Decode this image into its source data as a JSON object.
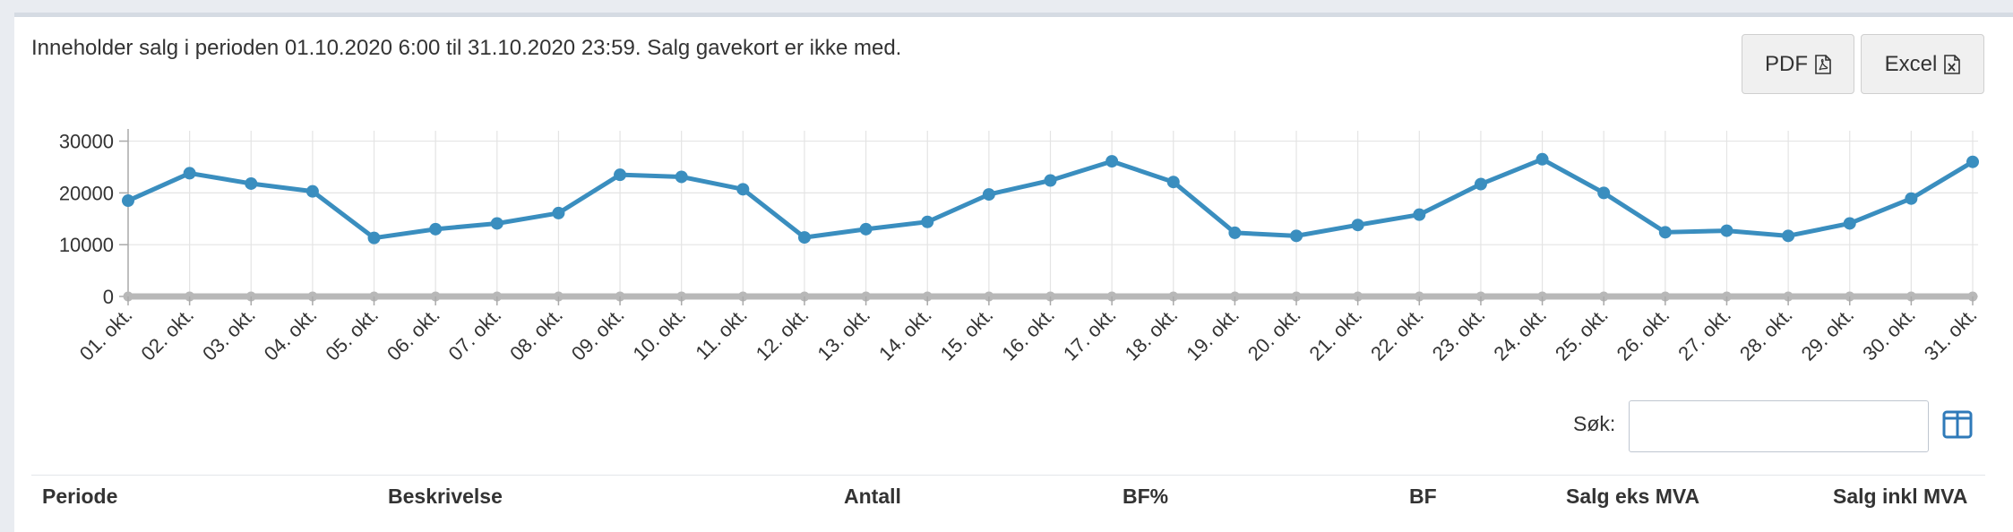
{
  "info_text": "Inneholder salg i perioden 01.10.2020 6:00 til 31.10.2020 23:59. Salg gavekort er ikke med.",
  "export": {
    "pdf_label": "PDF",
    "excel_label": "Excel",
    "pdf_icon": "pdf-file-icon",
    "excel_icon": "excel-file-icon"
  },
  "search": {
    "label": "Søk:",
    "value": "",
    "placeholder": ""
  },
  "columns_toggle_icon": "columns-icon",
  "table": {
    "columns": [
      "Periode",
      "Beskrivelse",
      "Antall",
      "BF%",
      "BF",
      "Salg eks MVA",
      "Salg inkl MVA"
    ]
  },
  "chart_data": {
    "type": "line",
    "categories": [
      "01. okt.",
      "02. okt.",
      "03. okt.",
      "04. okt.",
      "05. okt.",
      "06. okt.",
      "07. okt.",
      "08. okt.",
      "09. okt.",
      "10. okt.",
      "11. okt.",
      "12. okt.",
      "13. okt.",
      "14. okt.",
      "15. okt.",
      "16. okt.",
      "17. okt.",
      "18. okt.",
      "19. okt.",
      "20. okt.",
      "21. okt.",
      "22. okt.",
      "23. okt.",
      "24. okt.",
      "25. okt.",
      "26. okt.",
      "27. okt.",
      "28. okt.",
      "29. okt.",
      "30. okt.",
      "31. okt."
    ],
    "series": [
      {
        "values": [
          18500,
          23800,
          21800,
          20300,
          11300,
          13000,
          14100,
          16100,
          23500,
          23100,
          20700,
          11400,
          13000,
          14400,
          19700,
          22400,
          26100,
          22100,
          12300,
          11700,
          13800,
          15800,
          21700,
          26500,
          20000,
          12400,
          12700,
          11700,
          14100,
          18900,
          26000
        ],
        "color": "#3a8ebf"
      },
      {
        "values": [
          0,
          0,
          0,
          0,
          0,
          0,
          0,
          0,
          0,
          0,
          0,
          0,
          0,
          0,
          0,
          0,
          0,
          0,
          0,
          0,
          0,
          0,
          0,
          0,
          0,
          0,
          0,
          0,
          0,
          0,
          0
        ],
        "color": "#b8b8b8"
      }
    ],
    "y_ticks": [
      "0",
      "10000",
      "20000",
      "30000"
    ],
    "ylim": [
      0,
      32000
    ],
    "grid": true,
    "legend": "none"
  }
}
